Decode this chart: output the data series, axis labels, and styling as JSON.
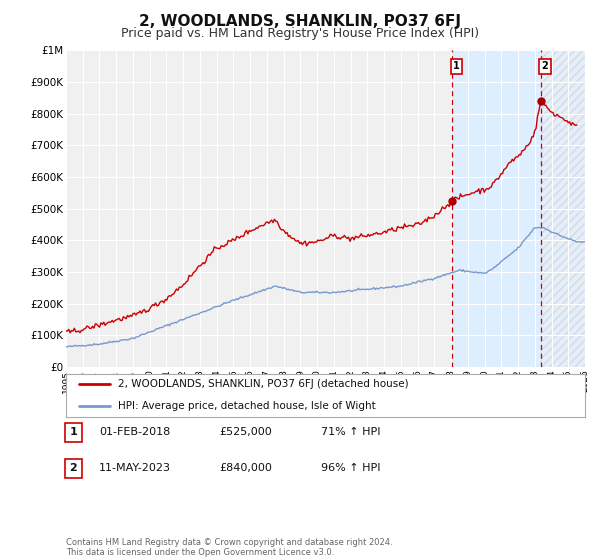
{
  "title": "2, WOODLANDS, SHANKLIN, PO37 6FJ",
  "subtitle": "Price paid vs. HM Land Registry's House Price Index (HPI)",
  "title_fontsize": 11,
  "subtitle_fontsize": 9,
  "background_color": "#ffffff",
  "plot_bg_color": "#f0f0f0",
  "grid_color": "#ffffff",
  "xlim": [
    1995,
    2026
  ],
  "ylim": [
    0,
    1000000
  ],
  "yticks": [
    0,
    100000,
    200000,
    300000,
    400000,
    500000,
    600000,
    700000,
    800000,
    900000,
    1000000
  ],
  "ytick_labels": [
    "£0",
    "£100K",
    "£200K",
    "£300K",
    "£400K",
    "£500K",
    "£600K",
    "£700K",
    "£800K",
    "£900K",
    "£1M"
  ],
  "xticks": [
    1995,
    1996,
    1997,
    1998,
    1999,
    2000,
    2001,
    2002,
    2003,
    2004,
    2005,
    2006,
    2007,
    2008,
    2009,
    2010,
    2011,
    2012,
    2013,
    2014,
    2015,
    2016,
    2017,
    2018,
    2019,
    2020,
    2021,
    2022,
    2023,
    2024,
    2025,
    2026
  ],
  "red_line_color": "#cc0000",
  "blue_line_color": "#7799cc",
  "shade_color": "#ddeeff",
  "hatch_color": "#bbccdd",
  "vline_color": "#cc0000",
  "marker1_x": 2018.08,
  "marker1_y": 525000,
  "marker2_x": 2023.36,
  "marker2_y": 840000,
  "vline1_x": 2018.08,
  "vline2_x": 2023.36,
  "legend_label1": "2, WOODLANDS, SHANKLIN, PO37 6FJ (detached house)",
  "legend_label2": "HPI: Average price, detached house, Isle of Wight",
  "table_rows": [
    {
      "num": "1",
      "date": "01-FEB-2018",
      "price": "£525,000",
      "hpi": "71% ↑ HPI"
    },
    {
      "num": "2",
      "date": "11-MAY-2023",
      "price": "£840,000",
      "hpi": "96% ↑ HPI"
    }
  ],
  "footer": "Contains HM Land Registry data © Crown copyright and database right 2024.\nThis data is licensed under the Open Government Licence v3.0."
}
